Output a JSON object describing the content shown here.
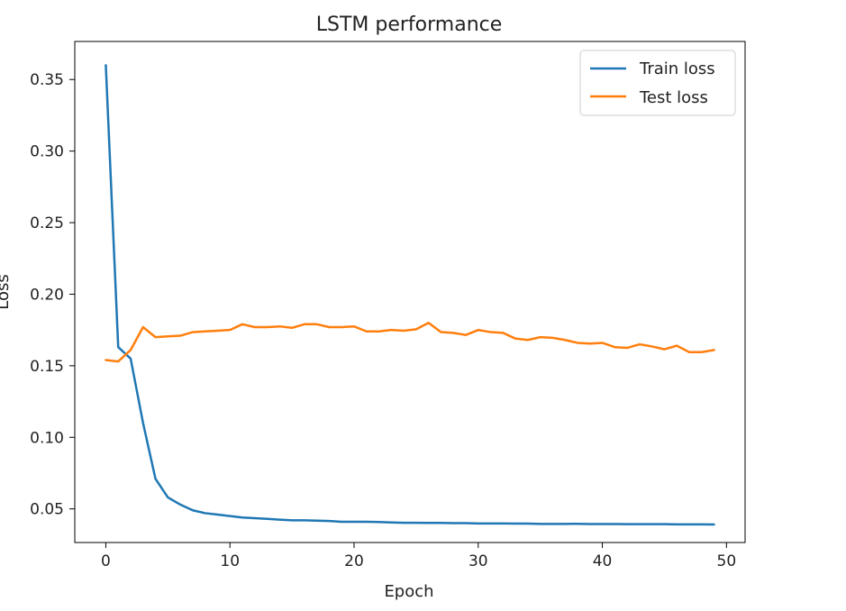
{
  "chart_data": {
    "type": "line",
    "title": "LSTM performance",
    "xlabel": "Epoch",
    "ylabel": "Loss",
    "xlim": [
      -2.5,
      51.5
    ],
    "ylim": [
      0.0265,
      0.3766
    ],
    "xticks": [
      "0",
      "10",
      "20",
      "30",
      "40",
      "50"
    ],
    "yticks": [
      "0.05",
      "0.10",
      "0.15",
      "0.20",
      "0.25",
      "0.30",
      "0.35"
    ],
    "grid": false,
    "legend_position": "top-right",
    "x": [
      0,
      1,
      2,
      3,
      4,
      5,
      6,
      7,
      8,
      9,
      10,
      11,
      12,
      13,
      14,
      15,
      16,
      17,
      18,
      19,
      20,
      21,
      22,
      23,
      24,
      25,
      26,
      27,
      28,
      29,
      30,
      31,
      32,
      33,
      34,
      35,
      36,
      37,
      38,
      39,
      40,
      41,
      42,
      43,
      44,
      45,
      46,
      47,
      48,
      49
    ],
    "series": [
      {
        "name": "Train loss",
        "color": "#1f77b4",
        "values": [
          0.36,
          0.163,
          0.155,
          0.11,
          0.071,
          0.058,
          0.053,
          0.049,
          0.047,
          0.046,
          0.045,
          0.044,
          0.0435,
          0.043,
          0.0425,
          0.042,
          0.042,
          0.0418,
          0.0415,
          0.041,
          0.041,
          0.041,
          0.0408,
          0.0405,
          0.0403,
          0.0403,
          0.0402,
          0.0402,
          0.04,
          0.04,
          0.0398,
          0.0398,
          0.0398,
          0.0397,
          0.0397,
          0.0395,
          0.0395,
          0.0395,
          0.0396,
          0.0394,
          0.0394,
          0.0394,
          0.0393,
          0.0393,
          0.0393,
          0.0393,
          0.0392,
          0.0392,
          0.0392,
          0.0391
        ]
      },
      {
        "name": "Test loss",
        "color": "#ff7f0e",
        "values": [
          0.154,
          0.153,
          0.161,
          0.177,
          0.17,
          0.1705,
          0.171,
          0.1735,
          0.174,
          0.1745,
          0.175,
          0.179,
          0.177,
          0.177,
          0.1775,
          0.1765,
          0.179,
          0.179,
          0.177,
          0.177,
          0.1775,
          0.174,
          0.174,
          0.175,
          0.1745,
          0.1755,
          0.18,
          0.1735,
          0.173,
          0.1715,
          0.175,
          0.1735,
          0.173,
          0.169,
          0.168,
          0.17,
          0.1695,
          0.168,
          0.166,
          0.1655,
          0.166,
          0.163,
          0.1625,
          0.165,
          0.1635,
          0.1615,
          0.164,
          0.1595,
          0.1595,
          0.161
        ]
      }
    ]
  }
}
